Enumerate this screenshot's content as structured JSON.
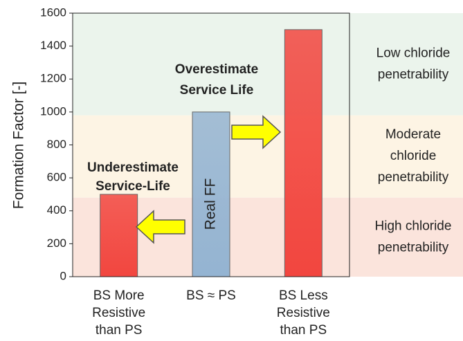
{
  "chart_data": {
    "type": "bar",
    "y_label": "Formation Factor [-]",
    "categories": [
      [
        "BS More",
        "Resistive",
        "than PS"
      ],
      [
        "BS ≈ PS"
      ],
      [
        "BS Less",
        "Resistive",
        "than PS"
      ]
    ],
    "values": [
      500,
      1000,
      1500
    ],
    "colors": [
      "#f2463f",
      "#94b4d2",
      "#f2463f"
    ],
    "ylim": [
      0,
      1600
    ],
    "yticks": [
      0,
      200,
      400,
      600,
      800,
      1000,
      1200,
      1400,
      1600
    ],
    "bands": [
      {
        "label": [
          "High chloride",
          "penetrability"
        ],
        "range": [
          0,
          480
        ],
        "color": "#fbe4dc"
      },
      {
        "label": [
          "Moderate",
          "chloride",
          "penetrability"
        ],
        "range": [
          480,
          980
        ],
        "color": "#fdf4e4"
      },
      {
        "label": [
          "Low chloride",
          "penetrability"
        ],
        "range": [
          980,
          1600
        ],
        "color": "#ebf4ec"
      }
    ],
    "annotations": [
      [
        "Overestimate",
        "Service Life"
      ],
      [
        "Underestimate",
        "Service-Life"
      ],
      [
        "Real FF"
      ]
    ]
  }
}
